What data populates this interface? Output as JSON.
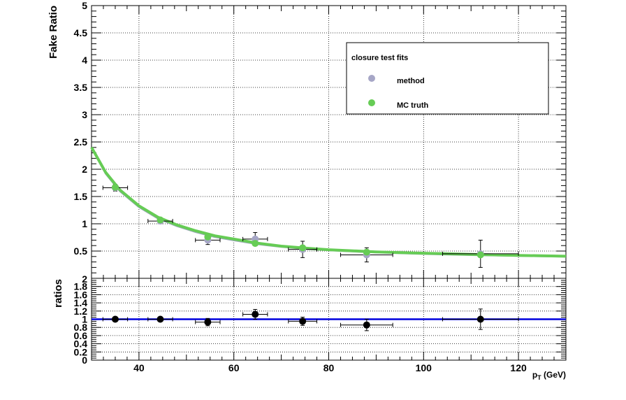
{
  "chart_data": [
    {
      "panel": "main",
      "type": "scatter",
      "ylabel": "Fake Ratio",
      "xlim": [
        30,
        130
      ],
      "ylim": [
        0,
        5
      ],
      "yticks": [
        0.5,
        1,
        1.5,
        2,
        2.5,
        3,
        3.5,
        4,
        4.5,
        5
      ],
      "ytick_labels": [
        "0.5",
        "1",
        "1.5",
        "2",
        "2.5",
        "3",
        "3.5",
        "4",
        "4.5",
        "5"
      ],
      "grid": true,
      "legend": {
        "title": "closure test fits",
        "placement": "top-right",
        "entries": [
          {
            "label": "method",
            "color": "#a6a6c6"
          },
          {
            "label": "MC truth",
            "color": "#66cc55"
          }
        ]
      },
      "series": [
        {
          "name": "method",
          "color": "#a6a6c6",
          "points": [
            {
              "x": 35,
              "y": 1.66,
              "xerr": 2.6,
              "yerr": 0.06
            },
            {
              "x": 44.5,
              "y": 1.05,
              "xerr": 2.6,
              "yerr": 0.05
            },
            {
              "x": 54.5,
              "y": 0.7,
              "xerr": 2.6,
              "yerr": 0.08
            },
            {
              "x": 64.5,
              "y": 0.72,
              "xerr": 2.6,
              "yerr": 0.12
            },
            {
              "x": 74.5,
              "y": 0.53,
              "xerr": 3.0,
              "yerr": 0.15
            },
            {
              "x": 88,
              "y": 0.43,
              "xerr": 5.5,
              "yerr": 0.13
            },
            {
              "x": 112,
              "y": 0.45,
              "xerr": 8.0,
              "yerr": 0.25
            }
          ]
        },
        {
          "name": "MC truth",
          "color": "#66cc55",
          "points": [
            {
              "x": 35,
              "y": 1.67
            },
            {
              "x": 44.5,
              "y": 1.07
            },
            {
              "x": 54.5,
              "y": 0.76
            },
            {
              "x": 64.5,
              "y": 0.64
            },
            {
              "x": 74.5,
              "y": 0.56
            },
            {
              "x": 88,
              "y": 0.48
            },
            {
              "x": 112,
              "y": 0.43
            }
          ]
        }
      ],
      "fit_curves": [
        {
          "color": "#9aa8b8",
          "x": [
            30,
            33,
            36,
            40,
            44,
            48,
            52,
            56,
            60,
            65,
            70,
            75,
            80,
            90,
            100,
            110,
            120,
            130
          ],
          "y": [
            2.4,
            1.92,
            1.6,
            1.31,
            1.1,
            0.96,
            0.85,
            0.76,
            0.7,
            0.63,
            0.58,
            0.545,
            0.515,
            0.475,
            0.45,
            0.43,
            0.415,
            0.4
          ]
        },
        {
          "color": "#66cc55",
          "x": [
            30,
            33,
            36,
            40,
            44,
            48,
            52,
            56,
            60,
            65,
            70,
            75,
            80,
            90,
            100,
            110,
            120,
            130
          ],
          "y": [
            2.4,
            1.94,
            1.62,
            1.33,
            1.12,
            0.98,
            0.87,
            0.78,
            0.72,
            0.645,
            0.59,
            0.555,
            0.525,
            0.485,
            0.46,
            0.44,
            0.42,
            0.405
          ]
        }
      ]
    },
    {
      "panel": "ratio",
      "type": "scatter",
      "xlabel": "p_T (GeV)",
      "ylabel": "ratios",
      "xlim": [
        30,
        130
      ],
      "ylim": [
        0,
        2
      ],
      "xticks": [
        40,
        60,
        80,
        100,
        120
      ],
      "xtick_labels": [
        "40",
        "60",
        "80",
        "100",
        "120"
      ],
      "yticks": [
        0,
        0.2,
        0.4,
        0.6,
        0.8,
        1,
        1.2,
        1.4,
        1.6,
        1.8
      ],
      "ytick_labels": [
        "0",
        "0.2",
        "0.4",
        "0.6",
        "0.8",
        "1",
        "1.2",
        "1.4",
        "1.6",
        "1.8"
      ],
      "main_top_label": "2",
      "grid": true,
      "reference_line": {
        "y": 1.0,
        "color": "#0000dd"
      },
      "points": [
        {
          "x": 35,
          "y": 1.0,
          "xerr": 2.6,
          "yerr": 0.05
        },
        {
          "x": 44.5,
          "y": 1.0,
          "xerr": 2.6,
          "yerr": 0.05
        },
        {
          "x": 54.5,
          "y": 0.93,
          "xerr": 2.6,
          "yerr": 0.09
        },
        {
          "x": 64.5,
          "y": 1.12,
          "xerr": 2.6,
          "yerr": 0.12
        },
        {
          "x": 74.5,
          "y": 0.95,
          "xerr": 3.0,
          "yerr": 0.1
        },
        {
          "x": 88,
          "y": 0.86,
          "xerr": 5.5,
          "yerr": 0.14
        },
        {
          "x": 112,
          "y": 1.0,
          "xerr": 8.0,
          "yerr": 0.25
        }
      ]
    }
  ]
}
